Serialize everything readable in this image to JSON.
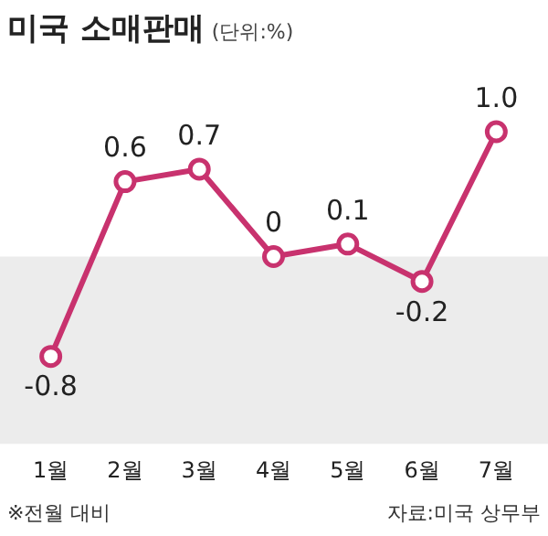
{
  "chart_data": {
    "type": "line",
    "title": "미국 소매판매",
    "subtitle": "(단위:%)",
    "categories": [
      "1월",
      "2월",
      "3월",
      "4월",
      "5월",
      "6월",
      "7월"
    ],
    "series": [
      {
        "color": "#c8326e",
        "values": [
          -0.8,
          0.6,
          0.7,
          0,
          0.1,
          -0.2,
          1.0
        ],
        "value_labels": [
          "-0.8",
          "0.6",
          "0.7",
          "0",
          "0.1",
          "-0.2",
          "1.0"
        ]
      }
    ],
    "tick_labels": "x",
    "grid": false,
    "legend": false,
    "marker": "circle",
    "line_style": "solid",
    "bands": [
      {
        "axis": "y",
        "from": -1.5,
        "to": 0,
        "color": "#ececec"
      }
    ],
    "annotations": [
      "※전월 대비",
      "자료:미국 상무부"
    ]
  }
}
